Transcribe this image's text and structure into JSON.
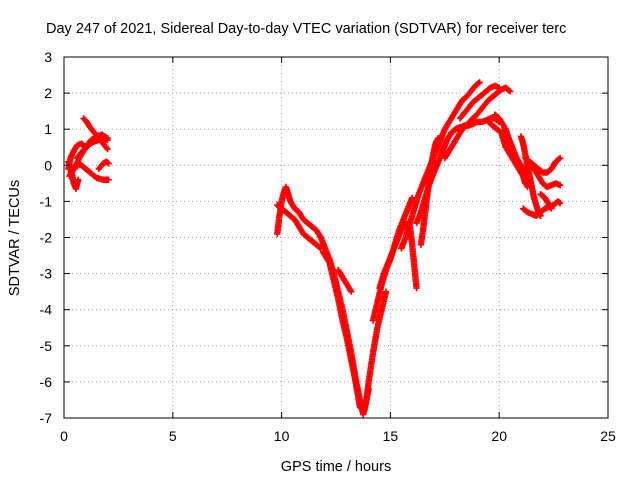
{
  "chart_data": {
    "type": "scatter",
    "title": "Day 247 of 2021, Sidereal Day-to-day VTEC variation (SDTVAR) for receiver terc",
    "xlabel": "GPS time / hours",
    "ylabel": "SDTVAR / TECUs",
    "xlim": [
      0,
      25
    ],
    "ylim": [
      -7,
      3
    ],
    "xticks": [
      0,
      5,
      10,
      15,
      20,
      25
    ],
    "yticks": [
      -7,
      -6,
      -5,
      -4,
      -3,
      -2,
      -1,
      0,
      1,
      2,
      3
    ],
    "grid": true,
    "marker": "plus",
    "color": "#ff0000",
    "tracks": [
      [
        [
          0.2,
          -0.1
        ],
        [
          0.3,
          0.2
        ],
        [
          0.45,
          0.4
        ],
        [
          0.6,
          0.55
        ],
        [
          0.8,
          0.6
        ],
        [
          1.0,
          0.5
        ]
      ],
      [
        [
          0.2,
          0.1
        ],
        [
          0.35,
          -0.2
        ],
        [
          0.45,
          -0.5
        ],
        [
          0.55,
          -0.65
        ],
        [
          0.65,
          -0.4
        ]
      ],
      [
        [
          0.25,
          -0.3
        ],
        [
          0.4,
          -0.1
        ],
        [
          0.6,
          0.05
        ],
        [
          0.8,
          0.0
        ],
        [
          1.0,
          -0.1
        ],
        [
          1.2,
          -0.2
        ],
        [
          1.5,
          -0.35
        ],
        [
          1.8,
          -0.4
        ],
        [
          2.05,
          -0.4
        ]
      ],
      [
        [
          0.5,
          -0.1
        ],
        [
          0.7,
          0.2
        ],
        [
          0.9,
          0.4
        ],
        [
          1.1,
          0.55
        ],
        [
          1.35,
          0.65
        ],
        [
          1.6,
          0.7
        ],
        [
          1.8,
          0.75
        ],
        [
          2.0,
          0.7
        ]
      ],
      [
        [
          0.9,
          1.3
        ],
        [
          1.05,
          1.2
        ],
        [
          1.2,
          1.05
        ],
        [
          1.4,
          0.9
        ],
        [
          1.6,
          0.75
        ],
        [
          1.8,
          0.6
        ],
        [
          2.0,
          0.45
        ]
      ],
      [
        [
          0.6,
          0.2
        ],
        [
          0.8,
          0.35
        ],
        [
          1.0,
          0.5
        ],
        [
          1.25,
          0.7
        ],
        [
          1.5,
          0.8
        ],
        [
          1.75,
          0.85
        ],
        [
          2.0,
          0.75
        ]
      ],
      [
        [
          1.6,
          -0.1
        ],
        [
          1.8,
          0.05
        ],
        [
          1.95,
          0.1
        ],
        [
          2.05,
          0.05
        ]
      ],
      [
        [
          9.8,
          -1.9
        ],
        [
          9.9,
          -1.4
        ],
        [
          10.0,
          -1.0
        ],
        [
          10.1,
          -0.75
        ],
        [
          10.2,
          -0.6
        ],
        [
          10.3,
          -0.8
        ],
        [
          10.4,
          -1.0
        ],
        [
          10.6,
          -1.2
        ],
        [
          10.8,
          -1.3
        ],
        [
          11.0,
          -1.5
        ],
        [
          11.2,
          -1.6
        ],
        [
          11.4,
          -1.7
        ],
        [
          11.6,
          -1.8
        ],
        [
          11.8,
          -2.0
        ]
      ],
      [
        [
          9.8,
          -1.1
        ],
        [
          10.0,
          -1.2
        ],
        [
          10.2,
          -1.3
        ],
        [
          10.4,
          -1.4
        ],
        [
          10.6,
          -1.5
        ],
        [
          10.8,
          -1.7
        ],
        [
          11.0,
          -1.9
        ],
        [
          11.2,
          -2.0
        ],
        [
          11.4,
          -2.1
        ],
        [
          11.6,
          -2.2
        ],
        [
          11.8,
          -2.3
        ]
      ],
      [
        [
          11.8,
          -2.0
        ],
        [
          12.0,
          -2.3
        ],
        [
          12.2,
          -2.6
        ],
        [
          12.4,
          -3.0
        ],
        [
          12.6,
          -3.5
        ],
        [
          12.8,
          -4.0
        ],
        [
          13.0,
          -4.6
        ],
        [
          13.2,
          -5.2
        ],
        [
          13.4,
          -5.9
        ],
        [
          13.6,
          -6.5
        ],
        [
          13.75,
          -6.9
        ],
        [
          13.9,
          -6.5
        ],
        [
          14.0,
          -6.0
        ],
        [
          14.2,
          -5.2
        ],
        [
          14.4,
          -4.5
        ],
        [
          14.6,
          -4.0
        ],
        [
          14.8,
          -3.5
        ]
      ],
      [
        [
          11.9,
          -2.4
        ],
        [
          12.2,
          -2.7
        ],
        [
          12.4,
          -3.2
        ],
        [
          12.6,
          -3.7
        ],
        [
          12.8,
          -4.3
        ],
        [
          13.0,
          -4.8
        ],
        [
          13.2,
          -5.4
        ],
        [
          13.4,
          -6.0
        ],
        [
          13.6,
          -6.7
        ],
        [
          13.8,
          -6.8
        ],
        [
          14.0,
          -6.2
        ]
      ],
      [
        [
          12.6,
          -2.9
        ],
        [
          12.8,
          -3.1
        ],
        [
          13.0,
          -3.3
        ],
        [
          13.2,
          -3.5
        ]
      ],
      [
        [
          14.2,
          -4.3
        ],
        [
          14.4,
          -3.8
        ],
        [
          14.6,
          -3.3
        ],
        [
          14.8,
          -2.9
        ],
        [
          15.0,
          -2.6
        ],
        [
          15.2,
          -2.2
        ],
        [
          15.4,
          -1.8
        ],
        [
          15.6,
          -1.5
        ],
        [
          15.8,
          -1.2
        ],
        [
          16.0,
          -0.9
        ]
      ],
      [
        [
          14.5,
          -3.4
        ],
        [
          14.7,
          -3.0
        ],
        [
          14.9,
          -2.7
        ],
        [
          15.1,
          -2.4
        ],
        [
          15.3,
          -2.1
        ],
        [
          15.5,
          -1.8
        ],
        [
          15.7,
          -1.6
        ],
        [
          15.9,
          -1.7
        ],
        [
          16.0,
          -2.2
        ],
        [
          16.1,
          -2.8
        ],
        [
          16.2,
          -3.4
        ]
      ],
      [
        [
          15.5,
          -2.3
        ],
        [
          15.7,
          -2.0
        ],
        [
          15.9,
          -1.6
        ],
        [
          16.1,
          -1.2
        ],
        [
          16.3,
          -0.8
        ],
        [
          16.5,
          -0.5
        ],
        [
          16.7,
          -0.2
        ],
        [
          16.9,
          0.1
        ],
        [
          17.1,
          0.4
        ],
        [
          17.3,
          0.7
        ],
        [
          17.5,
          1.0
        ],
        [
          17.7,
          1.2
        ],
        [
          17.9,
          1.4
        ],
        [
          18.1,
          1.6
        ],
        [
          18.3,
          1.8
        ],
        [
          18.5,
          1.9
        ],
        [
          18.7,
          2.05
        ],
        [
          18.9,
          2.2
        ],
        [
          19.1,
          2.3
        ]
      ],
      [
        [
          16.4,
          -2.2
        ],
        [
          16.5,
          -1.8
        ],
        [
          16.6,
          -1.3
        ],
        [
          16.7,
          -0.8
        ],
        [
          16.8,
          -0.3
        ],
        [
          16.9,
          0.1
        ],
        [
          17.0,
          0.4
        ],
        [
          17.1,
          0.65
        ],
        [
          17.2,
          0.75
        ]
      ],
      [
        [
          16.2,
          -1.6
        ],
        [
          16.4,
          -1.3
        ],
        [
          16.6,
          -0.9
        ],
        [
          16.8,
          -0.5
        ],
        [
          17.0,
          -0.2
        ],
        [
          17.2,
          0.1
        ],
        [
          17.4,
          0.4
        ],
        [
          17.6,
          0.7
        ],
        [
          17.8,
          0.9
        ],
        [
          18.0,
          1.0
        ],
        [
          18.2,
          1.05
        ]
      ],
      [
        [
          17.5,
          0.2
        ],
        [
          17.7,
          0.4
        ],
        [
          17.9,
          0.6
        ],
        [
          18.1,
          0.8
        ],
        [
          18.3,
          1.0
        ],
        [
          18.5,
          1.1
        ],
        [
          18.7,
          1.25
        ],
        [
          18.9,
          1.35
        ],
        [
          19.1,
          1.5
        ],
        [
          19.3,
          1.65
        ],
        [
          19.5,
          1.8
        ],
        [
          19.7,
          1.9
        ],
        [
          19.9,
          2.0
        ],
        [
          20.1,
          2.1
        ],
        [
          20.3,
          2.15
        ],
        [
          20.5,
          2.05
        ]
      ],
      [
        [
          17.8,
          0.9
        ],
        [
          18.0,
          1.0
        ],
        [
          18.2,
          1.05
        ],
        [
          18.4,
          1.1
        ],
        [
          18.6,
          1.1
        ],
        [
          18.8,
          1.15
        ],
        [
          19.0,
          1.2
        ],
        [
          19.2,
          1.2
        ],
        [
          19.4,
          1.25
        ],
        [
          19.6,
          1.3
        ],
        [
          19.8,
          1.3
        ],
        [
          20.0,
          1.2
        ]
      ],
      [
        [
          18.2,
          1.3
        ],
        [
          18.4,
          1.45
        ],
        [
          18.6,
          1.6
        ],
        [
          18.8,
          1.75
        ],
        [
          19.0,
          1.85
        ],
        [
          19.2,
          1.95
        ],
        [
          19.4,
          2.05
        ],
        [
          19.6,
          2.15
        ],
        [
          19.8,
          2.2
        ],
        [
          20.0,
          2.15
        ]
      ],
      [
        [
          19.5,
          1.2
        ],
        [
          19.7,
          1.1
        ],
        [
          19.9,
          1.0
        ],
        [
          20.1,
          0.9
        ],
        [
          20.2,
          0.7
        ],
        [
          20.3,
          0.5
        ],
        [
          20.5,
          0.3
        ],
        [
          20.7,
          0.1
        ],
        [
          20.9,
          -0.1
        ],
        [
          21.1,
          -0.3
        ],
        [
          21.2,
          -0.5
        ]
      ],
      [
        [
          19.8,
          1.4
        ],
        [
          20.0,
          1.3
        ],
        [
          20.2,
          1.1
        ],
        [
          20.4,
          0.8
        ],
        [
          20.6,
          0.5
        ],
        [
          20.8,
          0.2
        ],
        [
          21.0,
          0.0
        ],
        [
          21.2,
          -0.2
        ],
        [
          21.4,
          -0.5
        ]
      ],
      [
        [
          20.3,
          1.0
        ],
        [
          20.5,
          0.6
        ],
        [
          20.7,
          0.3
        ],
        [
          20.9,
          0.0
        ],
        [
          21.1,
          -0.3
        ],
        [
          21.3,
          -0.6
        ]
      ],
      [
        [
          21.0,
          0.8
        ],
        [
          21.1,
          0.6
        ],
        [
          21.2,
          0.3
        ],
        [
          21.3,
          0.0
        ],
        [
          21.4,
          -0.3
        ],
        [
          21.5,
          -0.6
        ],
        [
          21.6,
          -0.9
        ],
        [
          21.7,
          -1.1
        ],
        [
          21.8,
          -1.3
        ],
        [
          21.9,
          -1.4
        ]
      ],
      [
        [
          21.1,
          -1.2
        ],
        [
          21.3,
          -1.3
        ],
        [
          21.5,
          -1.35
        ],
        [
          21.7,
          -1.4
        ],
        [
          21.9,
          -1.3
        ],
        [
          22.1,
          -1.2
        ],
        [
          22.3,
          -1.15
        ],
        [
          22.5,
          -1.1
        ],
        [
          22.7,
          -1.0
        ],
        [
          22.8,
          -1.05
        ]
      ],
      [
        [
          21.0,
          -0.2
        ],
        [
          21.2,
          -0.1
        ],
        [
          21.4,
          0.0
        ],
        [
          21.6,
          -0.1
        ],
        [
          21.8,
          -0.3
        ],
        [
          22.0,
          -0.5
        ],
        [
          22.2,
          -0.6
        ],
        [
          22.4,
          -0.55
        ],
        [
          22.6,
          -0.5
        ],
        [
          22.8,
          -0.55
        ]
      ],
      [
        [
          21.2,
          0.2
        ],
        [
          21.4,
          0.1
        ],
        [
          21.6,
          0.0
        ],
        [
          21.8,
          -0.1
        ],
        [
          22.0,
          -0.2
        ],
        [
          22.2,
          -0.2
        ],
        [
          22.4,
          -0.1
        ],
        [
          22.5,
          0.0
        ],
        [
          22.6,
          0.1
        ],
        [
          22.7,
          0.15
        ],
        [
          22.8,
          0.2
        ]
      ],
      [
        [
          21.9,
          -0.8
        ],
        [
          22.1,
          -0.9
        ],
        [
          22.2,
          -1.0
        ],
        [
          22.3,
          -1.1
        ],
        [
          22.4,
          -1.2
        ]
      ]
    ]
  }
}
